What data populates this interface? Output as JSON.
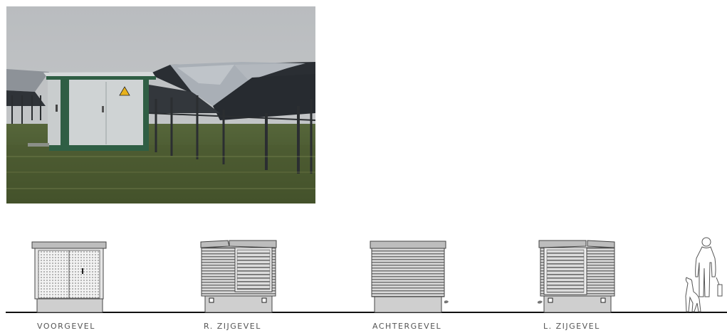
{
  "drawing": {
    "views": [
      {
        "label": "VOORGEVEL"
      },
      {
        "label": "R. ZIJGEVEL"
      },
      {
        "label": "ACHTERGEVEL"
      },
      {
        "label": "L. ZIJGEVEL"
      }
    ]
  }
}
